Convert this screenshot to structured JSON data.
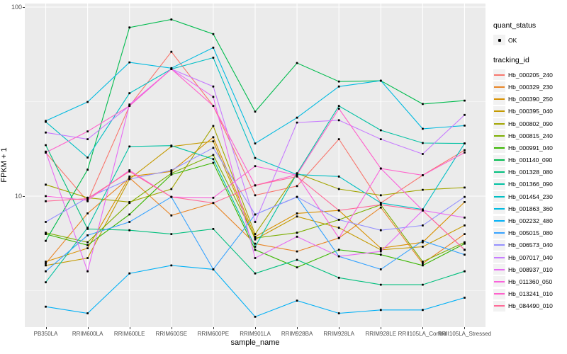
{
  "figure": {
    "x_axis": {
      "label": "sample_name"
    },
    "y_axis": {
      "label": "FPKM + 1",
      "tick_top": "100",
      "tick_bottom": "10"
    },
    "legend": {
      "quant_title": "quant_status",
      "quant_key_label": "OK",
      "tracking_title": "tracking_id"
    }
  },
  "colors": {
    "panel_bg": "#EBEBEB",
    "grid_major": "#FFFFFF",
    "grid_minor": "#FFFFFF",
    "tick_text": "#4D4D4D",
    "point": "#000000",
    "legend_key_bg": "#F2F2F2"
  },
  "chart_data": {
    "type": "line",
    "title": "",
    "xlabel": "sample_name",
    "ylabel": "FPKM + 1",
    "y_scale": "log10",
    "ylim": [
      2.03,
      104.5
    ],
    "y_major_ticks": [
      10,
      100
    ],
    "y_minor_gridlines": [
      3.162,
      31.62
    ],
    "grid": true,
    "legend_position": "right",
    "point_marker": {
      "shape": "square",
      "color": "#000000",
      "label": "OK"
    },
    "categories": [
      "PB350LA",
      "RRIM600LA",
      "RRIM600LE",
      "RRIM600SE",
      "RRIM600PE",
      "RRIM901LA",
      "RRIM928BA",
      "RRIM928LA",
      "RRIM928LE",
      "RRII105LA_Control",
      "RRII105LA_Stressed"
    ],
    "series": [
      {
        "name": "Hb_000205_240",
        "color": "#F8766D",
        "values": [
          17.0,
          9.4,
          30.0,
          58.0,
          30.0,
          10.1,
          11.3,
          20.0,
          9.2,
          12.9,
          17.5
        ]
      },
      {
        "name": "Hb_000329_230",
        "color": "#E88526",
        "values": [
          4.4,
          8.1,
          12.5,
          7.9,
          9.2,
          5.6,
          5.1,
          6.0,
          8.7,
          4.4,
          6.3
        ]
      },
      {
        "name": "Hb_000390_250",
        "color": "#D89000",
        "values": [
          4.5,
          5.3,
          12.7,
          13.5,
          20.5,
          6.1,
          8.1,
          8.4,
          5.3,
          5.7,
          9.3
        ]
      },
      {
        "name": "Hb_000395_040",
        "color": "#C49A00",
        "values": [
          4.3,
          4.7,
          12.3,
          18.3,
          19.5,
          5.9,
          7.8,
          6.8,
          5.2,
          5.4,
          7.0
        ]
      },
      {
        "name": "Hb_000802_090",
        "color": "#A3A500",
        "values": [
          11.5,
          9.8,
          9.3,
          10.9,
          23.5,
          6.3,
          13.2,
          10.9,
          10.1,
          10.8,
          11.1
        ]
      },
      {
        "name": "Hb_000815_240",
        "color": "#7CAE00",
        "values": [
          6.4,
          5.7,
          9.2,
          13.2,
          16.5,
          6.0,
          6.4,
          7.5,
          9.0,
          4.5,
          5.7
        ]
      },
      {
        "name": "Hb_000991_040",
        "color": "#39B600",
        "values": [
          6.3,
          5.5,
          8.0,
          13.0,
          15.0,
          5.2,
          4.2,
          5.2,
          4.9,
          4.3,
          5.6
        ]
      },
      {
        "name": "Hb_001140_090",
        "color": "#00BB4E",
        "values": [
          5.8,
          13.8,
          78.0,
          86.0,
          72.0,
          28.0,
          50.6,
          40.4,
          40.8,
          30.7,
          32.0
        ]
      },
      {
        "name": "Hb_001328_080",
        "color": "#00BF7D",
        "values": [
          18.6,
          6.7,
          6.6,
          6.3,
          6.7,
          3.9,
          4.6,
          3.7,
          3.4,
          3.4,
          4.0
        ]
      },
      {
        "name": "Hb_001366_090",
        "color": "#00C1A3",
        "values": [
          3.5,
          6.8,
          18.3,
          18.5,
          15.7,
          5.4,
          13.2,
          30.0,
          22.3,
          19.1,
          19.0
        ]
      },
      {
        "name": "Hb_001454_230",
        "color": "#00BFC4",
        "values": [
          24.7,
          16.0,
          35.0,
          47.0,
          54.0,
          15.9,
          13.0,
          12.7,
          9.2,
          8.5,
          19.0
        ]
      },
      {
        "name": "Hb_001863_360",
        "color": "#00BAE0",
        "values": [
          25.0,
          31.5,
          51.0,
          47.5,
          61.0,
          19.0,
          26.0,
          38.0,
          40.8,
          22.7,
          23.6
        ]
      },
      {
        "name": "Hb_002232_480",
        "color": "#00B0F6",
        "values": [
          2.6,
          2.4,
          3.9,
          4.3,
          4.1,
          2.3,
          2.8,
          2.4,
          2.5,
          2.5,
          2.9
        ]
      },
      {
        "name": "Hb_005015_080",
        "color": "#35A2FF",
        "values": [
          4.0,
          6.2,
          7.3,
          9.9,
          4.1,
          8.0,
          9.9,
          4.8,
          4.1,
          5.8,
          4.9
        ]
      },
      {
        "name": "Hb_006573_040",
        "color": "#9590FF",
        "values": [
          7.3,
          9.8,
          12.3,
          13.7,
          18.0,
          8.0,
          9.9,
          7.5,
          6.6,
          7.0,
          9.9
        ]
      },
      {
        "name": "Hb_007017_040",
        "color": "#C77CFF",
        "values": [
          21.7,
          20.0,
          30.0,
          47.0,
          38.0,
          7.3,
          24.5,
          25.2,
          20.0,
          16.7,
          26.9
        ]
      },
      {
        "name": "Hb_008937_010",
        "color": "#E76BF3",
        "values": [
          17.2,
          4.0,
          30.5,
          47.0,
          33.5,
          4.7,
          6.1,
          4.8,
          5.1,
          8.4,
          7.7
        ]
      },
      {
        "name": "Hb_011360_050",
        "color": "#FA62DB",
        "values": [
          10.0,
          9.5,
          13.7,
          9.9,
          9.8,
          14.4,
          12.9,
          6.0,
          14.0,
          8.4,
          5.2
        ]
      },
      {
        "name": "Hb_013241_010",
        "color": "#FF61CC",
        "values": [
          17.0,
          22.0,
          30.0,
          47.0,
          30.0,
          11.4,
          13.0,
          29.0,
          14.0,
          12.9,
          17.0
        ]
      },
      {
        "name": "Hb_084490_010",
        "color": "#FF6A98",
        "values": [
          9.4,
          9.7,
          13.5,
          9.9,
          9.2,
          11.4,
          12.7,
          8.4,
          9.0,
          8.4,
          5.2
        ]
      }
    ]
  }
}
